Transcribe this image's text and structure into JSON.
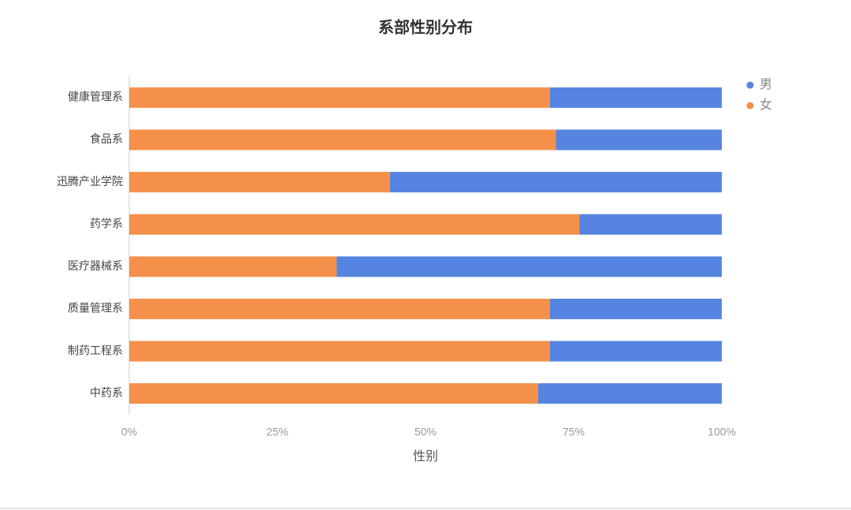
{
  "chart_data": {
    "type": "stacked-horizontal-bar",
    "title": "系部性别分布",
    "x_label": "性别",
    "categories": [
      "健康管理系",
      "食品系",
      "迅腾产业学院",
      "药学系",
      "医疗器械系",
      "质量管理系",
      "制药工程系",
      "中药系"
    ],
    "series": [
      {
        "name": "男",
        "color": "#5585e0",
        "values": [
          29,
          28,
          56,
          24,
          65,
          29,
          29,
          31
        ]
      },
      {
        "name": "女",
        "color": "#f5904a",
        "values": [
          71,
          72,
          44,
          76,
          35,
          71,
          71,
          69
        ]
      }
    ],
    "xlim": [
      0,
      100
    ],
    "xticks": [
      {
        "value": 0,
        "label": "0%"
      },
      {
        "value": 25,
        "label": "25%"
      },
      {
        "value": 50,
        "label": "50%"
      },
      {
        "value": 75,
        "label": "75%"
      },
      {
        "value": 100,
        "label": "100%"
      }
    ],
    "legend": "top-right"
  }
}
